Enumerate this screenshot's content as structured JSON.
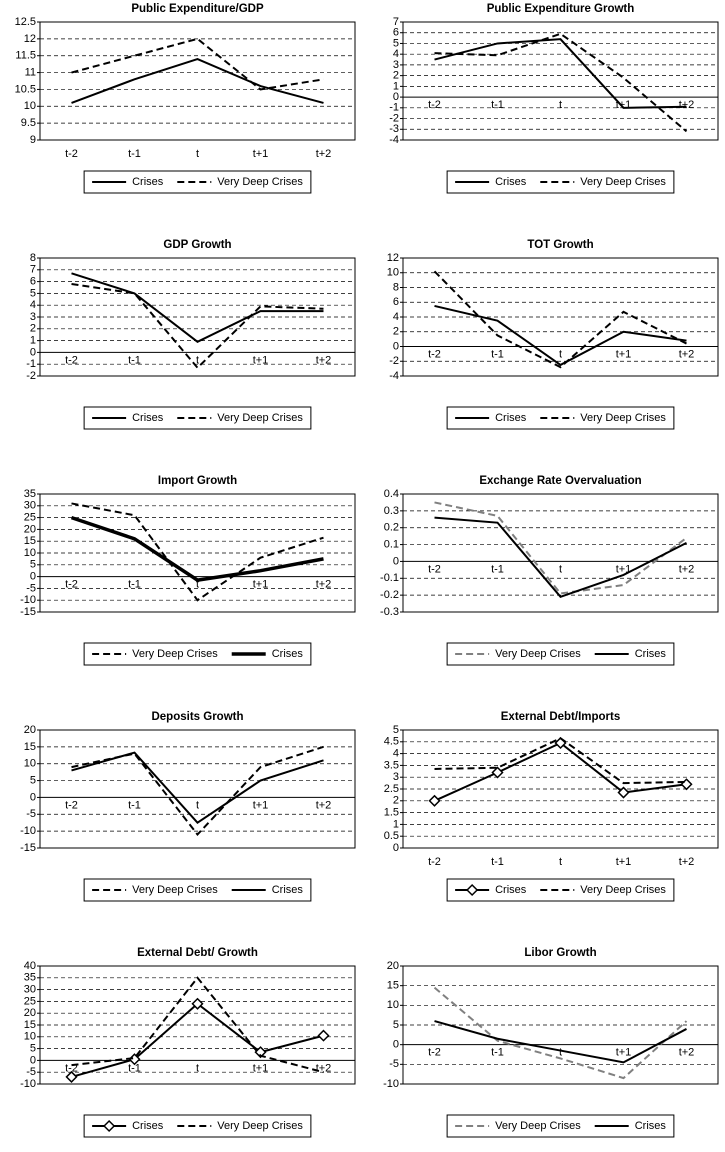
{
  "chart_data": [
    {
      "type": "line",
      "title": "Public Expenditure/GDP",
      "categories": [
        "t-2",
        "t-1",
        "t",
        "t+1",
        "t+2"
      ],
      "ylim": [
        9,
        12.5
      ],
      "yticks": [
        9,
        9.5,
        10,
        10.5,
        11,
        11.5,
        12,
        12.5
      ],
      "grid": true,
      "series": [
        {
          "name": "Crises",
          "color": "#000000",
          "line_style": "solid",
          "line_width": 2,
          "values": [
            10.1,
            10.8,
            11.4,
            10.6,
            10.1
          ]
        },
        {
          "name": "Very Deep Crises",
          "color": "#000000",
          "line_style": "dashed",
          "line_width": 2,
          "values": [
            11.0,
            11.5,
            12.0,
            10.5,
            10.8
          ]
        }
      ]
    },
    {
      "type": "line",
      "title": "Public Expenditure Growth",
      "categories": [
        "t-2",
        "t-1",
        "t",
        "t+1",
        "t+2"
      ],
      "ylim": [
        -4,
        7
      ],
      "yticks": [
        -4,
        -3,
        -2,
        -1,
        0,
        1,
        2,
        3,
        4,
        5,
        6,
        7
      ],
      "grid": true,
      "series": [
        {
          "name": "Crises",
          "color": "#000000",
          "line_style": "solid",
          "line_width": 2,
          "values": [
            3.5,
            5.0,
            5.4,
            -1.0,
            -0.9
          ]
        },
        {
          "name": "Very Deep Crises",
          "color": "#000000",
          "line_style": "dashed",
          "line_width": 2,
          "values": [
            4.1,
            3.9,
            5.9,
            1.8,
            -3.2
          ]
        }
      ]
    },
    {
      "type": "line",
      "title": "GDP Growth",
      "categories": [
        "t-2",
        "t-1",
        "t",
        "t+1",
        "t+2"
      ],
      "ylim": [
        -2,
        8
      ],
      "yticks": [
        -2,
        -1,
        0,
        1,
        2,
        3,
        4,
        5,
        6,
        7,
        8
      ],
      "grid": true,
      "series": [
        {
          "name": "Crises",
          "color": "#000000",
          "line_style": "solid",
          "line_width": 2,
          "values": [
            6.7,
            5.0,
            0.9,
            3.5,
            3.5
          ]
        },
        {
          "name": "Very Deep Crises",
          "color": "#000000",
          "line_style": "dashed",
          "line_width": 2,
          "values": [
            5.8,
            5.0,
            -1.3,
            3.9,
            3.7
          ]
        }
      ]
    },
    {
      "type": "line",
      "title": "TOT Growth",
      "categories": [
        "t-2",
        "t-1",
        "t",
        "t+1",
        "t+2"
      ],
      "ylim": [
        -4,
        12
      ],
      "yticks": [
        -4,
        -2,
        0,
        2,
        4,
        6,
        8,
        10,
        12
      ],
      "grid": true,
      "series": [
        {
          "name": "Crises",
          "color": "#000000",
          "line_style": "solid",
          "line_width": 2,
          "values": [
            5.5,
            3.5,
            -2.5,
            2.0,
            0.8
          ]
        },
        {
          "name": "Very Deep Crises",
          "color": "#000000",
          "line_style": "dashed",
          "line_width": 2,
          "values": [
            10.2,
            1.5,
            -2.8,
            4.7,
            0.4
          ]
        }
      ]
    },
    {
      "type": "line",
      "title": "Import Growth",
      "categories": [
        "t-2",
        "t-1",
        "t",
        "t+1",
        "t+2"
      ],
      "ylim": [
        -15,
        35
      ],
      "yticks": [
        -15,
        -10,
        -5,
        0,
        5,
        10,
        15,
        20,
        25,
        30,
        35
      ],
      "grid": true,
      "series": [
        {
          "name": "Very Deep Crises",
          "color": "#000000",
          "line_style": "dashed",
          "line_width": 2,
          "values": [
            31,
            26,
            -10,
            8,
            16.5
          ]
        },
        {
          "name": "Crises",
          "color": "#000000",
          "line_style": "solid",
          "line_width": 3.5,
          "values": [
            25,
            16,
            -1.5,
            2.5,
            7.5
          ]
        }
      ]
    },
    {
      "type": "line",
      "title": "Exchange Rate Overvaluation",
      "categories": [
        "t-2",
        "t-1",
        "t",
        "t+1",
        "t+2"
      ],
      "ylim": [
        -0.3,
        0.4
      ],
      "yticks": [
        -0.3,
        -0.2,
        -0.1,
        0,
        0.1,
        0.2,
        0.3,
        0.4
      ],
      "grid": true,
      "series": [
        {
          "name": "Very Deep Crises",
          "color": "#808080",
          "line_style": "dashed",
          "line_width": 2,
          "values": [
            0.35,
            0.27,
            -0.19,
            -0.14,
            0.14
          ]
        },
        {
          "name": "Crises",
          "color": "#000000",
          "line_style": "solid",
          "line_width": 2,
          "values": [
            0.26,
            0.23,
            -0.21,
            -0.08,
            0.11
          ]
        }
      ]
    },
    {
      "type": "line",
      "title": "Deposits Growth",
      "categories": [
        "t-2",
        "t-1",
        "t",
        "t+1",
        "t+2"
      ],
      "ylim": [
        -15,
        20
      ],
      "yticks": [
        -15,
        -10,
        -5,
        0,
        5,
        10,
        15,
        20
      ],
      "grid": true,
      "series": [
        {
          "name": "Very Deep Crises",
          "color": "#000000",
          "line_style": "dashed",
          "line_width": 2,
          "values": [
            9,
            13,
            -11,
            9,
            15
          ]
        },
        {
          "name": "Crises",
          "color": "#000000",
          "line_style": "solid",
          "line_width": 2,
          "values": [
            8,
            13.3,
            -7.5,
            5,
            11
          ]
        }
      ]
    },
    {
      "type": "line",
      "title": "External Debt/Imports",
      "categories": [
        "t-2",
        "t-1",
        "t",
        "t+1",
        "t+2"
      ],
      "ylim": [
        0,
        5
      ],
      "yticks": [
        0,
        0.5,
        1,
        1.5,
        2,
        2.5,
        3,
        3.5,
        4,
        4.5,
        5
      ],
      "grid": true,
      "series": [
        {
          "name": "Crises",
          "color": "#000000",
          "line_style": "solid",
          "line_width": 2,
          "marker": "diamond",
          "values": [
            2.0,
            3.2,
            4.45,
            2.35,
            2.7
          ]
        },
        {
          "name": "Very Deep Crises",
          "color": "#000000",
          "line_style": "dashed",
          "line_width": 2,
          "values": [
            3.35,
            3.4,
            4.65,
            2.75,
            2.8
          ]
        }
      ]
    },
    {
      "type": "line",
      "title": "External Debt/ Growth",
      "categories": [
        "t-2",
        "t-1",
        "t",
        "t+1",
        "t+2"
      ],
      "ylim": [
        -10,
        40
      ],
      "yticks": [
        -10,
        -5,
        0,
        5,
        10,
        15,
        20,
        25,
        30,
        35,
        40
      ],
      "grid": true,
      "series": [
        {
          "name": "Crises",
          "color": "#000000",
          "line_style": "solid",
          "line_width": 2,
          "marker": "diamond",
          "values": [
            -7,
            0.5,
            24,
            3.5,
            10.5
          ]
        },
        {
          "name": "Very Deep Crises",
          "color": "#000000",
          "line_style": "dashed",
          "line_width": 2,
          "values": [
            -2,
            1,
            35,
            2,
            -5
          ]
        }
      ]
    },
    {
      "type": "line",
      "title": "Libor Growth",
      "categories": [
        "t-2",
        "t-1",
        "t",
        "t+1",
        "t+2"
      ],
      "ylim": [
        -10,
        20
      ],
      "yticks": [
        -10,
        -5,
        0,
        5,
        10,
        15,
        20
      ],
      "grid": true,
      "series": [
        {
          "name": "Very Deep Crises",
          "color": "#808080",
          "line_style": "dashed",
          "line_width": 2,
          "values": [
            14.5,
            1,
            -3.5,
            -8.5,
            6
          ]
        },
        {
          "name": "Crises",
          "color": "#000000",
          "line_style": "solid",
          "line_width": 2,
          "values": [
            6,
            1.5,
            -1.5,
            -4.5,
            4
          ]
        }
      ]
    }
  ]
}
